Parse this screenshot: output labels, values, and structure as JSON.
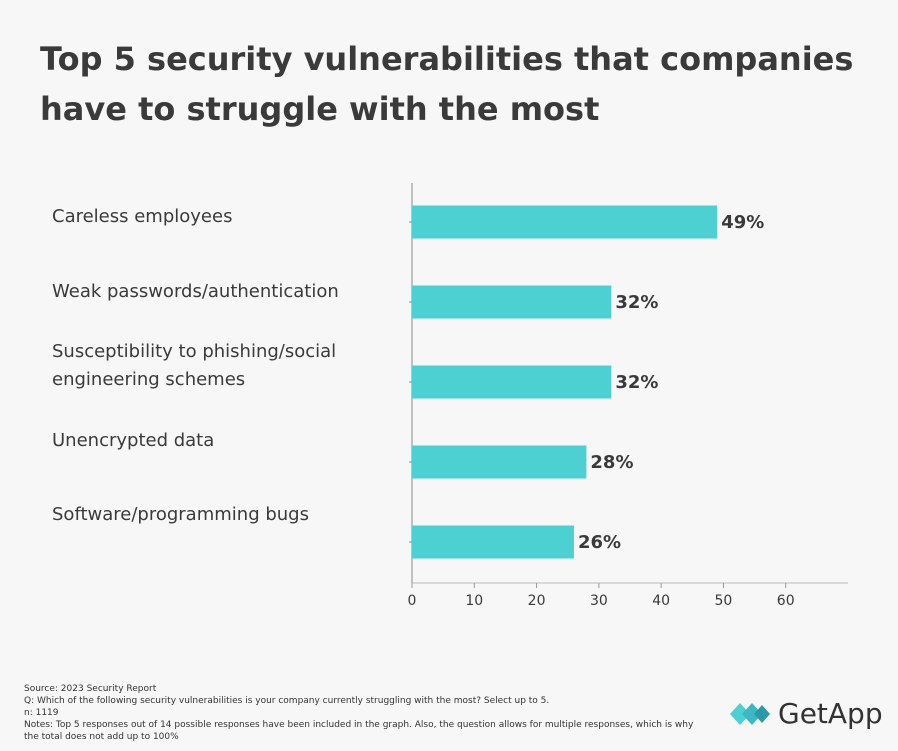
{
  "chart_data": {
    "type": "bar",
    "orientation": "horizontal",
    "title": "Top 5 security vulnerabilities that companies have to struggle with the most",
    "categories": [
      "Careless employees",
      "Weak passwords/authentication",
      "Susceptibility to phishing/social engineering schemes",
      "Unencrypted data",
      "Software/programming bugs"
    ],
    "values": [
      49,
      32,
      32,
      28,
      26
    ],
    "value_labels": [
      "49%",
      "32%",
      "32%",
      "28%",
      "26%"
    ],
    "color": "#4dd0d1",
    "xlim": [
      0,
      70
    ],
    "xticks": [
      0,
      10,
      20,
      30,
      40,
      50,
      60
    ]
  },
  "footer": {
    "source": "Source: 2023 Security Report",
    "question": "Q: Which of the following security vulnerabilities is your company currently struggling with the most? Select up to 5.",
    "n": "n: 1119",
    "notes": "Notes: Top 5 responses out of 14 possible responses have been included in the graph. Also, the question allows for multiple responses, which is why the total does not add up to 100%",
    "logo": "GetApp"
  }
}
